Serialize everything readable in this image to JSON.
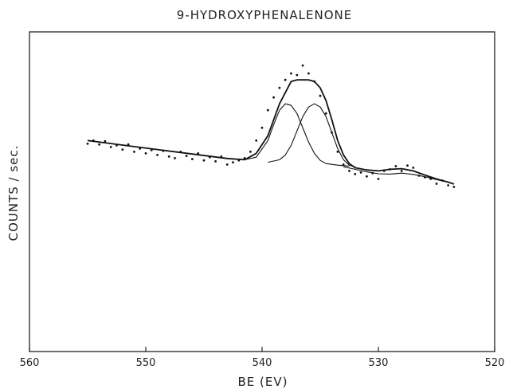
{
  "chart_data": {
    "type": "scatter",
    "title": "9-HYDROXYPHENALENONE",
    "xlabel": "BE (EV)",
    "ylabel": "COUNTS / sec.",
    "xlim": [
      560,
      520
    ],
    "x_ticks": [
      560,
      550,
      540,
      530,
      520
    ],
    "x_axis_reversed": true,
    "ylim": [
      0,
      100
    ],
    "y_ticks_labeled": false,
    "grid": false,
    "legend": "none",
    "series": [
      {
        "role": "measured-points",
        "style": "dots",
        "x": [
          555.0,
          554.5,
          554.0,
          553.5,
          553.0,
          552.5,
          552.0,
          551.5,
          551.0,
          550.5,
          550.0,
          549.5,
          549.0,
          548.5,
          548.0,
          547.5,
          547.0,
          546.5,
          546.0,
          545.5,
          545.0,
          544.5,
          544.0,
          543.5,
          543.0,
          542.5,
          542.0,
          541.5,
          541.0,
          540.5,
          540.0,
          539.5,
          539.0,
          538.5,
          538.0,
          537.5,
          537.0,
          536.5,
          536.0,
          535.5,
          535.0,
          534.5,
          534.0,
          533.5,
          533.0,
          532.5,
          532.0,
          531.5,
          531.0,
          530.5,
          530.0,
          529.5,
          529.0,
          528.5,
          528.0,
          527.5,
          527.0,
          526.5,
          526.0,
          525.5,
          525.0,
          524.5,
          524.0,
          523.5
        ],
        "y": [
          65.0,
          66.0,
          64.8,
          65.8,
          64.0,
          64.5,
          63.2,
          64.8,
          62.5,
          63.5,
          62.0,
          63.0,
          61.5,
          62.8,
          61.0,
          60.5,
          62.5,
          61.2,
          60.2,
          62.0,
          59.8,
          60.8,
          59.5,
          61.0,
          58.5,
          59.2,
          59.8,
          60.5,
          62.5,
          66.0,
          70.0,
          75.5,
          79.5,
          82.5,
          85.0,
          87.0,
          86.5,
          89.5,
          87.0,
          84.5,
          80.0,
          74.5,
          68.5,
          62.5,
          58.5,
          56.5,
          55.5,
          56.0,
          54.8,
          55.8,
          54.0,
          56.5,
          57.0,
          58.0,
          56.5,
          58.2,
          57.5,
          55.0,
          54.5,
          54.0,
          52.5,
          53.5,
          52.0,
          51.5
        ]
      },
      {
        "role": "fitted-envelope",
        "style": "line",
        "x": [
          555,
          552,
          549,
          546,
          543,
          541.5,
          540.5,
          539.5,
          538.5,
          537.5,
          537,
          536.5,
          536,
          535.5,
          535,
          534.5,
          534,
          533.5,
          533,
          532.5,
          532,
          531,
          530,
          529,
          528,
          527,
          526,
          525,
          524,
          523.5
        ],
        "y": [
          66.0,
          64.6,
          63.2,
          61.8,
          60.4,
          60.0,
          62.0,
          67.5,
          77.5,
          84.5,
          85.0,
          85.0,
          85.0,
          84.5,
          82.5,
          78.5,
          72.5,
          66.0,
          61.5,
          58.8,
          57.5,
          56.8,
          56.5,
          57.0,
          57.2,
          56.5,
          55.2,
          54.0,
          53.0,
          52.4
        ]
      },
      {
        "role": "component-peak-1",
        "style": "line",
        "x": [
          542.5,
          541.5,
          540.5,
          539.5,
          539,
          538.5,
          538,
          537.5,
          537,
          536.5,
          536,
          535.5,
          535,
          534.5,
          533.5,
          532.5
        ],
        "y": [
          60.2,
          60.0,
          60.8,
          66.0,
          71.0,
          75.5,
          77.5,
          77.0,
          74.5,
          70.0,
          65.5,
          62.0,
          59.8,
          58.8,
          58.3,
          58.0
        ]
      },
      {
        "role": "component-peak-2",
        "style": "line",
        "x": [
          539.5,
          538.5,
          538,
          537.5,
          537,
          536.5,
          536,
          535.5,
          535,
          534.5,
          534,
          533.5,
          533,
          532.5,
          532
        ],
        "y": [
          59.2,
          60.0,
          61.5,
          64.5,
          69.0,
          73.5,
          76.5,
          77.5,
          76.5,
          73.5,
          68.5,
          63.5,
          60.0,
          58.3,
          57.8
        ]
      },
      {
        "role": "component-peak-3",
        "style": "line",
        "x": [
          533,
          532,
          531,
          530,
          529,
          528,
          527,
          526,
          525,
          524,
          523.5
        ],
        "y": [
          57.8,
          57.0,
          56.2,
          55.6,
          55.5,
          55.8,
          55.4,
          54.7,
          53.8,
          53.0,
          52.4
        ]
      }
    ]
  }
}
